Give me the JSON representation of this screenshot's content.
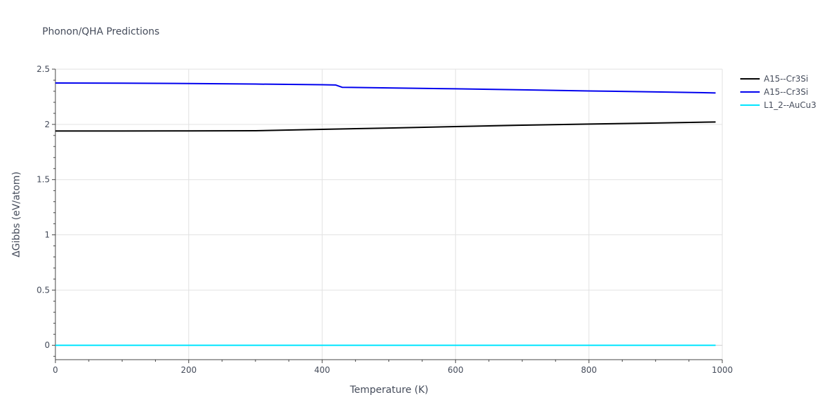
{
  "chart_data": {
    "type": "line",
    "title": "Phonon/QHA Predictions",
    "xlabel": "Temperature (K)",
    "ylabel": "ΔGibbs (eV/atom)",
    "xlim": [
      0,
      1000
    ],
    "ylim": [
      -0.13,
      2.5
    ],
    "x_ticks": [
      0,
      200,
      400,
      600,
      800,
      1000
    ],
    "x_tick_labels": [
      "0",
      "200",
      "400",
      "600",
      "800",
      "1000"
    ],
    "y_ticks": [
      0,
      0.5,
      1,
      1.5,
      2,
      2.5
    ],
    "y_tick_labels": [
      "0",
      "0.5",
      "1",
      "1.5",
      "2",
      "2.5"
    ],
    "grid": true,
    "legend_position": "top-right",
    "series": [
      {
        "name": "A15--Cr3Si",
        "color": "#000000",
        "x": [
          0,
          100,
          200,
          300,
          400,
          500,
          600,
          700,
          800,
          900,
          990
        ],
        "y": [
          1.94,
          1.94,
          1.941,
          1.943,
          1.955,
          1.967,
          1.98,
          1.993,
          2.003,
          2.012,
          2.022
        ]
      },
      {
        "name": "A15--Cr3Si",
        "color": "#0000ee",
        "x": [
          0,
          100,
          200,
          300,
          400,
          420,
          430,
          500,
          600,
          700,
          800,
          900,
          990
        ],
        "y": [
          2.375,
          2.373,
          2.37,
          2.365,
          2.359,
          2.357,
          2.336,
          2.33,
          2.322,
          2.313,
          2.303,
          2.294,
          2.285
        ]
      },
      {
        "name": "L1_2--AuCu3",
        "color": "#00e5ff",
        "x": [
          0,
          200,
          400,
          600,
          800,
          990
        ],
        "y": [
          0,
          0,
          0,
          0,
          0,
          0
        ]
      }
    ]
  }
}
